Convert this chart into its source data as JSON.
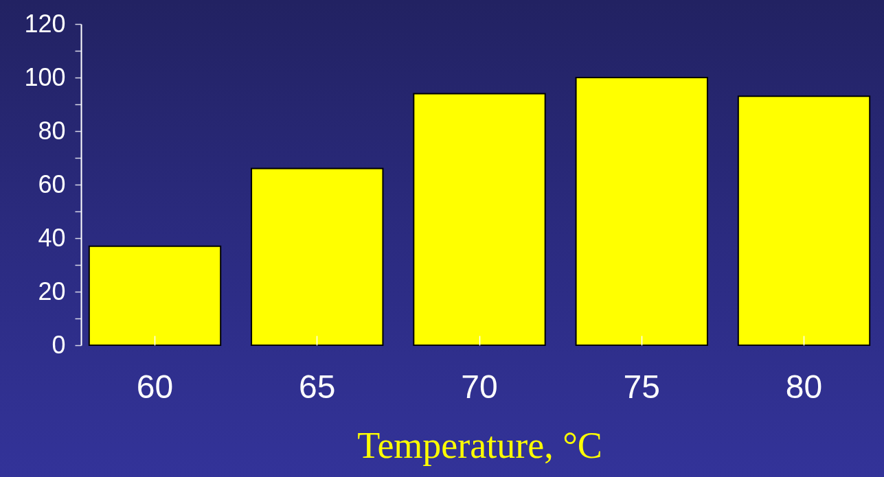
{
  "chart_data": {
    "type": "bar",
    "categories": [
      "60",
      "65",
      "70",
      "75",
      "80"
    ],
    "values": [
      37,
      66,
      94,
      100,
      93
    ],
    "color": "#ffff00",
    "xlabel": "Temperature, °C",
    "ylim": [
      0,
      120
    ],
    "yticks": [
      0,
      {
        "value": 10,
        "label": null
      },
      20,
      {
        "value": 30,
        "label": null
      },
      40,
      {
        "value": 50,
        "label": null
      },
      60,
      {
        "value": 70,
        "label": null
      },
      80,
      {
        "value": 90,
        "label": null
      },
      100,
      {
        "value": 110,
        "label": null
      },
      120
    ]
  }
}
